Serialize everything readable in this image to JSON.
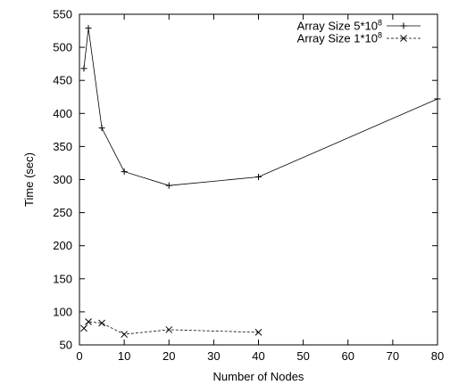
{
  "chart_data": {
    "type": "line",
    "xlabel": "Number of Nodes",
    "ylabel": "Time (sec)",
    "xlim": [
      0,
      80
    ],
    "ylim": [
      50,
      550
    ],
    "xticks": [
      0,
      10,
      20,
      30,
      40,
      50,
      60,
      70,
      80
    ],
    "yticks": [
      50,
      100,
      150,
      200,
      250,
      300,
      350,
      400,
      450,
      500,
      550
    ],
    "grid": false,
    "legend_position": "top-right",
    "series": [
      {
        "name": "Array Size 5*10",
        "name_exponent": "8",
        "marker": "+",
        "line": "solid",
        "x": [
          1,
          2,
          5,
          10,
          20,
          40,
          80
        ],
        "y": [
          468,
          529,
          378,
          312,
          291,
          304,
          422
        ]
      },
      {
        "name": "Array Size 1*10",
        "name_exponent": "8",
        "marker": "x",
        "line": "dashed",
        "x": [
          1,
          2,
          5,
          10,
          20,
          40
        ],
        "y": [
          75,
          85,
          83,
          66,
          73,
          69
        ]
      }
    ]
  }
}
